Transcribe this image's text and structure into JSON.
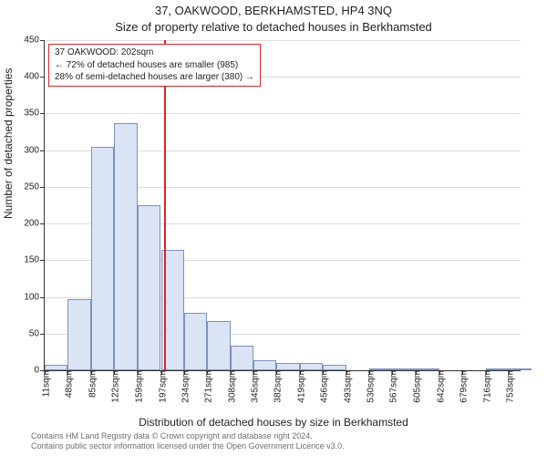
{
  "header": {
    "line1": "37, OAKWOOD, BERKHAMSTED, HP4 3NQ",
    "line2": "Size of property relative to detached houses in Berkhamsted"
  },
  "axis": {
    "ylabel": "Number of detached properties",
    "xlabel": "Distribution of detached houses by size in Berkhamsted"
  },
  "footer": {
    "line1": "Contains HM Land Registry data © Crown copyright and database right 2024.",
    "line2": "Contains public sector information licensed under the Open Government Licence v3.0."
  },
  "chart": {
    "type": "histogram",
    "bar_fill": "#dbe4f5",
    "bar_stroke": "#7b92bf",
    "grid_color": "#dddddd",
    "axis_color": "#333333",
    "background": "#ffffff",
    "marker_color": "#d62728",
    "marker_x": 202,
    "x_min": 11,
    "x_max": 772,
    "y_min": 0,
    "y_max": 450,
    "y_ticks": [
      0,
      50,
      100,
      150,
      200,
      250,
      300,
      350,
      400,
      450
    ],
    "x_tick_labels": [
      "11sqm",
      "48sqm",
      "85sqm",
      "122sqm",
      "159sqm",
      "197sqm",
      "234sqm",
      "271sqm",
      "308sqm",
      "345sqm",
      "382sqm",
      "419sqm",
      "456sqm",
      "493sqm",
      "530sqm",
      "567sqm",
      "605sqm",
      "642sqm",
      "679sqm",
      "716sqm",
      "753sqm"
    ],
    "x_tick_pos": [
      11,
      48,
      85,
      122,
      159,
      197,
      234,
      271,
      308,
      345,
      382,
      419,
      456,
      493,
      530,
      567,
      605,
      642,
      679,
      716,
      753
    ],
    "bars": {
      "bin_left": [
        11,
        48,
        85,
        122,
        159,
        197,
        234,
        271,
        308,
        345,
        382,
        419,
        456,
        493,
        530,
        567,
        605,
        642,
        679,
        716,
        753
      ],
      "bin_width": 37,
      "counts": [
        8,
        97,
        304,
        337,
        225,
        164,
        78,
        67,
        33,
        14,
        10,
        10,
        8,
        0,
        2,
        1,
        1,
        0,
        0,
        1,
        1
      ]
    }
  },
  "annotation": {
    "l1": "37 OAKWOOD: 202sqm",
    "l2": "← 72% of detached houses are smaller (985)",
    "l3": "28% of semi-detached houses are larger (380) →"
  }
}
